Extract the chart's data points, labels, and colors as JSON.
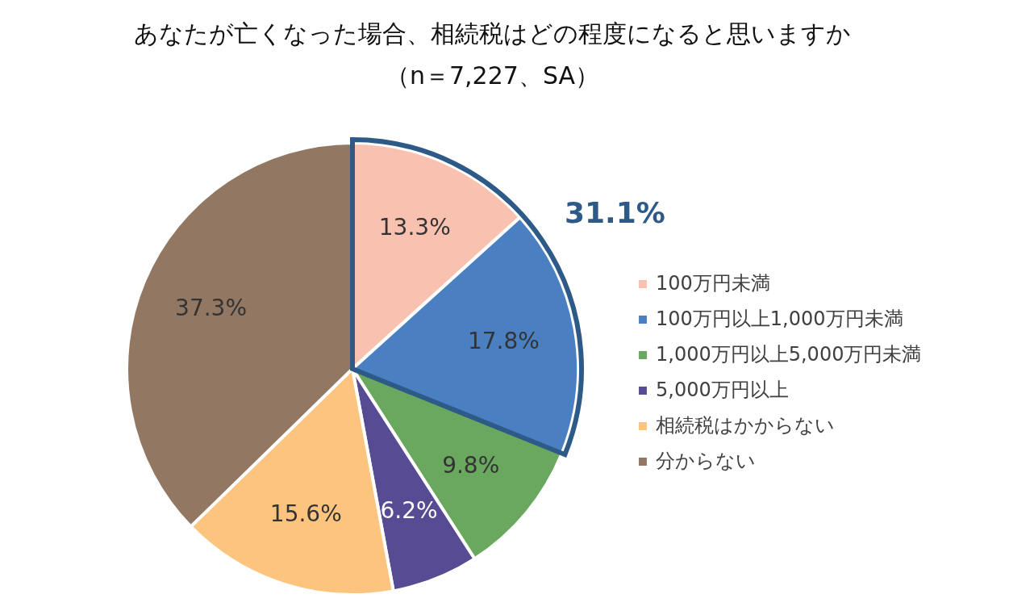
{
  "chart_data": {
    "type": "pie",
    "title": "あなたが亡くなった場合、相続税はどの程度になると思いますか",
    "subtitle": "（n＝7,227、SA）",
    "categories": [
      "100万円未満",
      "100万円以上1,000万円未満",
      "1,000万円以上5,000万円未満",
      "5,000万円以上",
      "相続税はかからない",
      "分からない"
    ],
    "values": [
      13.3,
      17.8,
      9.8,
      6.2,
      15.6,
      37.3
    ],
    "colors": [
      "#f8c1b0",
      "#4a80c2",
      "#6aa85f",
      "#574c93",
      "#fdc47f",
      "#927762"
    ],
    "value_labels": [
      "13.3%",
      "17.8%",
      "9.8%",
      "6.2%",
      "15.6%",
      "37.3%"
    ],
    "annotations": [
      "31.1%"
    ],
    "legend": "right"
  }
}
